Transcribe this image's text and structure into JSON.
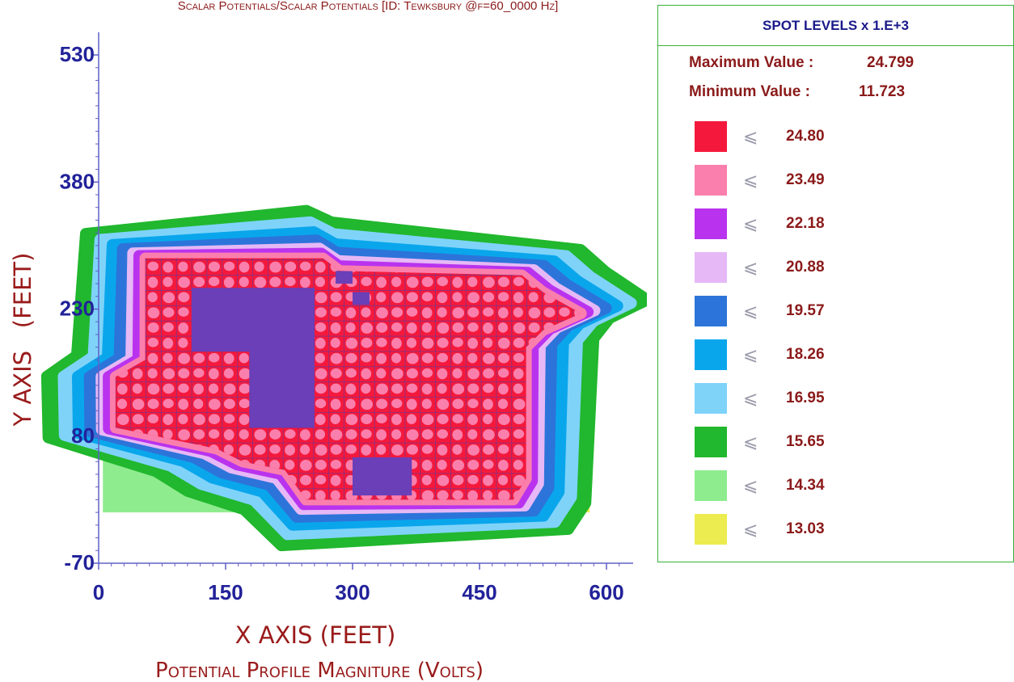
{
  "chart_data": {
    "type": "heatmap",
    "title": "Scalar Potentials/Scalar Potentials [ID: Tewksbury @f=60_0000 Hz]",
    "xlabel": "X AXIS (FEET)",
    "ylabel": "Y AXIS   (FEET)",
    "subtitle": "Potential Profile Magniture (Volts)",
    "xlim": [
      0,
      630
    ],
    "ylim": [
      -70,
      530
    ],
    "x_ticks": [
      "0",
      "150",
      "300",
      "450",
      "600"
    ],
    "y_ticks": [
      "530",
      "380",
      "230",
      "80",
      "-70"
    ],
    "x_tick_values": [
      0,
      150,
      300,
      450,
      600
    ],
    "y_tick_values": [
      530,
      380,
      230,
      80,
      -70
    ],
    "data_extent": {
      "x": [
        5,
        580
      ],
      "y": [
        -10,
        290
      ]
    },
    "legend": {
      "title": "SPOT LEVELS x 1.E+3",
      "max_label": "Maximum Value :",
      "max_value": "24.799",
      "min_label": "Minimum Value :",
      "min_value": "11.723",
      "symbol": "⩽",
      "levels": [
        {
          "value": "24.80",
          "color": "#f4193c"
        },
        {
          "value": "23.49",
          "color": "#fb7fac"
        },
        {
          "value": "22.18",
          "color": "#b933ee"
        },
        {
          "value": "20.88",
          "color": "#e6b8f6"
        },
        {
          "value": "19.57",
          "color": "#2c74d9"
        },
        {
          "value": "18.26",
          "color": "#0aa6ec"
        },
        {
          "value": "16.95",
          "color": "#7fd3f9"
        },
        {
          "value": "15.65",
          "color": "#21b72e"
        },
        {
          "value": "14.34",
          "color": "#8eec8e"
        },
        {
          "value": "13.03",
          "color": "#ecec50"
        }
      ]
    },
    "colors": {
      "grid_line": "#4040b0",
      "dense_block": "#6a3fb8"
    }
  }
}
